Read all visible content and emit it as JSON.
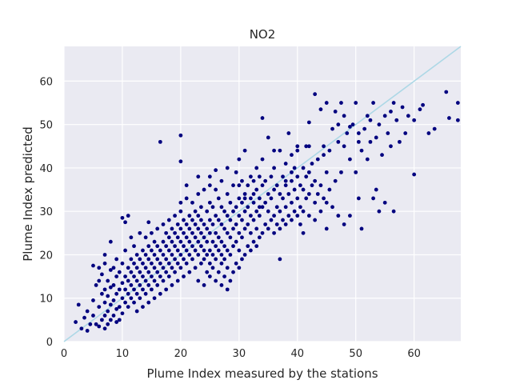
{
  "chart_data": {
    "type": "scatter",
    "title": "NO2",
    "xlabel": "Plume Index measured by the stations",
    "ylabel": "Plume Index predicted",
    "xlim": [
      0,
      68
    ],
    "ylim": [
      0,
      68
    ],
    "xticks": [
      0,
      10,
      20,
      30,
      40,
      50,
      60
    ],
    "yticks": [
      0,
      10,
      20,
      30,
      40,
      50,
      60
    ],
    "grid": true,
    "background_color": "#eaeaf2",
    "point_color": "#00007f",
    "reference_line": {
      "x": [
        0,
        68
      ],
      "y": [
        0,
        68
      ],
      "color": "#add8e6"
    },
    "points": [
      [
        2,
        4.5
      ],
      [
        2.5,
        8.5
      ],
      [
        3,
        3
      ],
      [
        3.5,
        5.5
      ],
      [
        4,
        2.5
      ],
      [
        4,
        7
      ],
      [
        4.5,
        4
      ],
      [
        5,
        6
      ],
      [
        5,
        9.5
      ],
      [
        5,
        17.5
      ],
      [
        5.5,
        4
      ],
      [
        5.5,
        13
      ],
      [
        6,
        3.5
      ],
      [
        6,
        8
      ],
      [
        6,
        14
      ],
      [
        6,
        17
      ],
      [
        6.5,
        5
      ],
      [
        6.5,
        11
      ],
      [
        6.5,
        15.5
      ],
      [
        7,
        3
      ],
      [
        7,
        6
      ],
      [
        7,
        9
      ],
      [
        7,
        12
      ],
      [
        7,
        18
      ],
      [
        7,
        20
      ],
      [
        7.5,
        4
      ],
      [
        7.5,
        7
      ],
      [
        7.5,
        10.5
      ],
      [
        7.5,
        14
      ],
      [
        8,
        5
      ],
      [
        8,
        8.5
      ],
      [
        8,
        12.5
      ],
      [
        8,
        16.5
      ],
      [
        8,
        23
      ],
      [
        8.5,
        6
      ],
      [
        8.5,
        9.5
      ],
      [
        8.5,
        13
      ],
      [
        8.5,
        17
      ],
      [
        9,
        4.5
      ],
      [
        9,
        7.5
      ],
      [
        9,
        11
      ],
      [
        9,
        15
      ],
      [
        9,
        19
      ],
      [
        9.5,
        5
      ],
      [
        9.5,
        8
      ],
      [
        9.5,
        12
      ],
      [
        9.5,
        16
      ],
      [
        10,
        6.5
      ],
      [
        10,
        10
      ],
      [
        10,
        13.5
      ],
      [
        10,
        18
      ],
      [
        10,
        28.5
      ],
      [
        10.5,
        9
      ],
      [
        10.5,
        12
      ],
      [
        10.5,
        15
      ],
      [
        10.5,
        21
      ],
      [
        10.5,
        27.5
      ],
      [
        11,
        8
      ],
      [
        11,
        11
      ],
      [
        11,
        14
      ],
      [
        11,
        17
      ],
      [
        11,
        29
      ],
      [
        11.5,
        10
      ],
      [
        11.5,
        13
      ],
      [
        11.5,
        16
      ],
      [
        11.5,
        19
      ],
      [
        11.5,
        24
      ],
      [
        12,
        9
      ],
      [
        12,
        12
      ],
      [
        12,
        15
      ],
      [
        12,
        18
      ],
      [
        12,
        22
      ],
      [
        12.5,
        7
      ],
      [
        12.5,
        11
      ],
      [
        12.5,
        14
      ],
      [
        12.5,
        17
      ],
      [
        12.5,
        20
      ],
      [
        13,
        10
      ],
      [
        13,
        13
      ],
      [
        13,
        16
      ],
      [
        13,
        19
      ],
      [
        13,
        25
      ],
      [
        13.5,
        8
      ],
      [
        13.5,
        12
      ],
      [
        13.5,
        15
      ],
      [
        13.5,
        18
      ],
      [
        13.5,
        21
      ],
      [
        14,
        11
      ],
      [
        14,
        14
      ],
      [
        14,
        17
      ],
      [
        14,
        20
      ],
      [
        14,
        24
      ],
      [
        14.5,
        9
      ],
      [
        14.5,
        13
      ],
      [
        14.5,
        16
      ],
      [
        14.5,
        19
      ],
      [
        14.5,
        22
      ],
      [
        14.5,
        27.5
      ],
      [
        15,
        12
      ],
      [
        15,
        15
      ],
      [
        15,
        18
      ],
      [
        15,
        21
      ],
      [
        15,
        25
      ],
      [
        15.5,
        10
      ],
      [
        15.5,
        14
      ],
      [
        15.5,
        17
      ],
      [
        15.5,
        20
      ],
      [
        15.5,
        23
      ],
      [
        16,
        13
      ],
      [
        16,
        16
      ],
      [
        16,
        19
      ],
      [
        16,
        22
      ],
      [
        16,
        26
      ],
      [
        16.5,
        11
      ],
      [
        16.5,
        15
      ],
      [
        16.5,
        18
      ],
      [
        16.5,
        21
      ],
      [
        16.5,
        46
      ],
      [
        17,
        14
      ],
      [
        17,
        17
      ],
      [
        17,
        20
      ],
      [
        17,
        23
      ],
      [
        17,
        27
      ],
      [
        17.5,
        12
      ],
      [
        17.5,
        16
      ],
      [
        17.5,
        19
      ],
      [
        17.5,
        22
      ],
      [
        17.5,
        25
      ],
      [
        18,
        15
      ],
      [
        18,
        18
      ],
      [
        18,
        21
      ],
      [
        18,
        24
      ],
      [
        18,
        28
      ],
      [
        18.5,
        13
      ],
      [
        18.5,
        17
      ],
      [
        18.5,
        20
      ],
      [
        18.5,
        23
      ],
      [
        18.5,
        26
      ],
      [
        19,
        16
      ],
      [
        19,
        19
      ],
      [
        19,
        22
      ],
      [
        19,
        25
      ],
      [
        19,
        29
      ],
      [
        19.5,
        14
      ],
      [
        19.5,
        18
      ],
      [
        19.5,
        21
      ],
      [
        19.5,
        24
      ],
      [
        19.5,
        27
      ],
      [
        20,
        17
      ],
      [
        20,
        20
      ],
      [
        20,
        23
      ],
      [
        20,
        26
      ],
      [
        20,
        30
      ],
      [
        20,
        47.5
      ],
      [
        20,
        41.5
      ],
      [
        20.5,
        15
      ],
      [
        20.5,
        19
      ],
      [
        20.5,
        22
      ],
      [
        20.5,
        25
      ],
      [
        20.5,
        28
      ],
      [
        21,
        18
      ],
      [
        21,
        21
      ],
      [
        21,
        24
      ],
      [
        21,
        27
      ],
      [
        21,
        33
      ],
      [
        21.5,
        16
      ],
      [
        21.5,
        20
      ],
      [
        21.5,
        23
      ],
      [
        21.5,
        26
      ],
      [
        21.5,
        29
      ],
      [
        22,
        19
      ],
      [
        22,
        22
      ],
      [
        22,
        25
      ],
      [
        22,
        28
      ],
      [
        22,
        32
      ],
      [
        22.5,
        17
      ],
      [
        22.5,
        21
      ],
      [
        22.5,
        24
      ],
      [
        22.5,
        27
      ],
      [
        22.5,
        30
      ],
      [
        23,
        14
      ],
      [
        23,
        20
      ],
      [
        23,
        23
      ],
      [
        23,
        26
      ],
      [
        23,
        29
      ],
      [
        23,
        34
      ],
      [
        23.5,
        18
      ],
      [
        23.5,
        22
      ],
      [
        23.5,
        25
      ],
      [
        23.5,
        28
      ],
      [
        23.5,
        31
      ],
      [
        24,
        13
      ],
      [
        24,
        19
      ],
      [
        24,
        21
      ],
      [
        24,
        24
      ],
      [
        24,
        27
      ],
      [
        24,
        35
      ],
      [
        24.5,
        16
      ],
      [
        24.5,
        20
      ],
      [
        24.5,
        23
      ],
      [
        24.5,
        26
      ],
      [
        24.5,
        30
      ],
      [
        25,
        15
      ],
      [
        25,
        18
      ],
      [
        25,
        21
      ],
      [
        25,
        25
      ],
      [
        25,
        28
      ],
      [
        25,
        32
      ],
      [
        25,
        38
      ],
      [
        25.5,
        17
      ],
      [
        25.5,
        20
      ],
      [
        25.5,
        23
      ],
      [
        25.5,
        27
      ],
      [
        25.5,
        31
      ],
      [
        26,
        14
      ],
      [
        26,
        19
      ],
      [
        26,
        22
      ],
      [
        26,
        25
      ],
      [
        26,
        29
      ],
      [
        26,
        35
      ],
      [
        26,
        39.5
      ],
      [
        26.5,
        16
      ],
      [
        26.5,
        21
      ],
      [
        26.5,
        24
      ],
      [
        26.5,
        28
      ],
      [
        26.5,
        33
      ],
      [
        27,
        13
      ],
      [
        27,
        18
      ],
      [
        27,
        20
      ],
      [
        27,
        23
      ],
      [
        27,
        27
      ],
      [
        27,
        31
      ],
      [
        27,
        37
      ],
      [
        27.5,
        15
      ],
      [
        27.5,
        19
      ],
      [
        27.5,
        22
      ],
      [
        27.5,
        26
      ],
      [
        27.5,
        30
      ],
      [
        28,
        12
      ],
      [
        28,
        17
      ],
      [
        28,
        21
      ],
      [
        28,
        25
      ],
      [
        28,
        29
      ],
      [
        28,
        34
      ],
      [
        28,
        40
      ],
      [
        28.5,
        14
      ],
      [
        28.5,
        20
      ],
      [
        28.5,
        24
      ],
      [
        28.5,
        28
      ],
      [
        28.5,
        32
      ],
      [
        29,
        16
      ],
      [
        29,
        22
      ],
      [
        29,
        26
      ],
      [
        29,
        30
      ],
      [
        29,
        36
      ],
      [
        29.5,
        18
      ],
      [
        29.5,
        23
      ],
      [
        29.5,
        27
      ],
      [
        29.5,
        31
      ],
      [
        29.5,
        39
      ],
      [
        30,
        17
      ],
      [
        30,
        21
      ],
      [
        30,
        25
      ],
      [
        30,
        29
      ],
      [
        30,
        33
      ],
      [
        30,
        42
      ],
      [
        30.5,
        19
      ],
      [
        30.5,
        24
      ],
      [
        30.5,
        28
      ],
      [
        30.5,
        32
      ],
      [
        30.5,
        37
      ],
      [
        31,
        20
      ],
      [
        31,
        26
      ],
      [
        31,
        30
      ],
      [
        31,
        34
      ],
      [
        31,
        44
      ],
      [
        31.5,
        22
      ],
      [
        31.5,
        27
      ],
      [
        31.5,
        31
      ],
      [
        31.5,
        36
      ],
      [
        32,
        21
      ],
      [
        32,
        25
      ],
      [
        32,
        29
      ],
      [
        32,
        33
      ],
      [
        32,
        38
      ],
      [
        32.5,
        23
      ],
      [
        32.5,
        28
      ],
      [
        32.5,
        32
      ],
      [
        32.5,
        37
      ],
      [
        33,
        22
      ],
      [
        33,
        26
      ],
      [
        33,
        30
      ],
      [
        33,
        35
      ],
      [
        33,
        40
      ],
      [
        33.5,
        24
      ],
      [
        33.5,
        29
      ],
      [
        33.5,
        33
      ],
      [
        33.5,
        38
      ],
      [
        34,
        25
      ],
      [
        34,
        31
      ],
      [
        34,
        36
      ],
      [
        34,
        42
      ],
      [
        34,
        51.5
      ],
      [
        34.5,
        27
      ],
      [
        34.5,
        32
      ],
      [
        34.5,
        37
      ],
      [
        35,
        26
      ],
      [
        35,
        30
      ],
      [
        35,
        34
      ],
      [
        35,
        47
      ],
      [
        35.5,
        28
      ],
      [
        35.5,
        33
      ],
      [
        35.5,
        38
      ],
      [
        36,
        25
      ],
      [
        36,
        29
      ],
      [
        36,
        35
      ],
      [
        36,
        40
      ],
      [
        36.5,
        27
      ],
      [
        36.5,
        31
      ],
      [
        36.5,
        36
      ],
      [
        37,
        19
      ],
      [
        37,
        26
      ],
      [
        37,
        30
      ],
      [
        37,
        34
      ],
      [
        37,
        44
      ],
      [
        37.5,
        28
      ],
      [
        37.5,
        33
      ],
      [
        37.5,
        38
      ],
      [
        38,
        27
      ],
      [
        38,
        31
      ],
      [
        38,
        36
      ],
      [
        38,
        41
      ],
      [
        38.5,
        29
      ],
      [
        38.5,
        34
      ],
      [
        38.5,
        48
      ],
      [
        39,
        28
      ],
      [
        39,
        32
      ],
      [
        39,
        37
      ],
      [
        39,
        43
      ],
      [
        39.5,
        30
      ],
      [
        39.5,
        35
      ],
      [
        39.5,
        40
      ],
      [
        40,
        29
      ],
      [
        40,
        33
      ],
      [
        40,
        38
      ],
      [
        40,
        45
      ],
      [
        40.5,
        27
      ],
      [
        40.5,
        31
      ],
      [
        40.5,
        36
      ],
      [
        41,
        25
      ],
      [
        41,
        30
      ],
      [
        41,
        35
      ],
      [
        41,
        40
      ],
      [
        41.5,
        33
      ],
      [
        41.5,
        38
      ],
      [
        42,
        29
      ],
      [
        42,
        34
      ],
      [
        42,
        39
      ],
      [
        42,
        50.5
      ],
      [
        42.5,
        36
      ],
      [
        42.5,
        41
      ],
      [
        43,
        28
      ],
      [
        43,
        32
      ],
      [
        43,
        37
      ],
      [
        43,
        57
      ],
      [
        43.5,
        34
      ],
      [
        43.5,
        42
      ],
      [
        44,
        30
      ],
      [
        44,
        36
      ],
      [
        44,
        53.5
      ],
      [
        44.5,
        33
      ],
      [
        44.5,
        43
      ],
      [
        45,
        26
      ],
      [
        45,
        32
      ],
      [
        45,
        39
      ],
      [
        45,
        55
      ],
      [
        45.5,
        35
      ],
      [
        45.5,
        44
      ],
      [
        46,
        31
      ],
      [
        46,
        49
      ],
      [
        46.5,
        37
      ],
      [
        46.5,
        53
      ],
      [
        47,
        29
      ],
      [
        47,
        46
      ],
      [
        47.5,
        39
      ],
      [
        47.5,
        55
      ],
      [
        48,
        27
      ],
      [
        48,
        45
      ],
      [
        48.5,
        48
      ],
      [
        49,
        29
      ],
      [
        49,
        42
      ],
      [
        49.5,
        50
      ],
      [
        50,
        39
      ],
      [
        50,
        55
      ],
      [
        50.5,
        33
      ],
      [
        50.5,
        46
      ],
      [
        51,
        26
      ],
      [
        51,
        44
      ],
      [
        51.5,
        49
      ],
      [
        52,
        42
      ],
      [
        52,
        52
      ],
      [
        52.5,
        46
      ],
      [
        53,
        33
      ],
      [
        53,
        55
      ],
      [
        53.5,
        47
      ],
      [
        54,
        30
      ],
      [
        54,
        50
      ],
      [
        54.5,
        43
      ],
      [
        55,
        32
      ],
      [
        55,
        52
      ],
      [
        55.5,
        48
      ],
      [
        56,
        45
      ],
      [
        56,
        53
      ],
      [
        56.5,
        30
      ],
      [
        56.5,
        55
      ],
      [
        57,
        51
      ],
      [
        57.5,
        46
      ],
      [
        58,
        54
      ],
      [
        58.5,
        48
      ],
      [
        59,
        52
      ],
      [
        60,
        38.5
      ],
      [
        60,
        51
      ],
      [
        61,
        53.5
      ],
      [
        61.5,
        54.5
      ],
      [
        62.5,
        48
      ],
      [
        63.5,
        49
      ],
      [
        65.5,
        57.5
      ],
      [
        66,
        51.5
      ],
      [
        67.5,
        55
      ],
      [
        67.5,
        51
      ],
      [
        41.5,
        45
      ],
      [
        40,
        44
      ],
      [
        47,
        50
      ],
      [
        48,
        52
      ],
      [
        49,
        49.5
      ],
      [
        50.5,
        48
      ],
      [
        52.5,
        51
      ],
      [
        53.5,
        35
      ],
      [
        30,
        36
      ],
      [
        31,
        33
      ],
      [
        32.5,
        34
      ],
      [
        33.5,
        31
      ],
      [
        25,
        36
      ],
      [
        23,
        38
      ],
      [
        21,
        36
      ],
      [
        20,
        32
      ],
      [
        36,
        44
      ],
      [
        38,
        37
      ],
      [
        39,
        39
      ],
      [
        42,
        45
      ],
      [
        44.5,
        45
      ]
    ]
  }
}
